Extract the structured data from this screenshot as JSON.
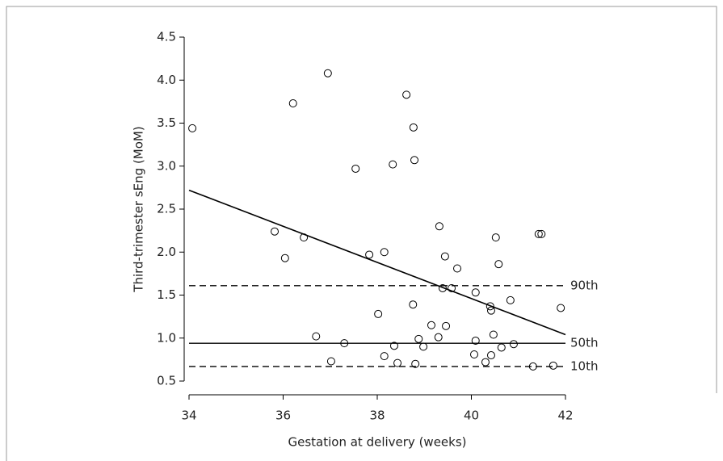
{
  "chart_data": {
    "type": "scatter",
    "x_label": "Gestation at delivery (weeks)",
    "y_label": "Third-trimester sEng (MoM)",
    "x": [
      34.07,
      35.82,
      36.04,
      36.21,
      36.44,
      36.7,
      36.95,
      37.02,
      37.3,
      37.54,
      37.83,
      38.02,
      38.15,
      38.15,
      38.33,
      38.36,
      38.43,
      38.62,
      38.76,
      38.77,
      38.79,
      38.81,
      38.88,
      38.98,
      39.15,
      39.3,
      39.32,
      39.39,
      39.44,
      39.46,
      39.58,
      39.7,
      40.06,
      40.09,
      40.09,
      40.3,
      40.4,
      40.42,
      40.42,
      40.47,
      40.52,
      40.58,
      40.64,
      40.83,
      40.9,
      41.31,
      41.43,
      41.49,
      41.74,
      41.9
    ],
    "values": [
      3.44,
      2.24,
      1.93,
      3.73,
      2.17,
      1.02,
      4.08,
      0.73,
      0.94,
      2.97,
      1.97,
      1.28,
      2.0,
      0.79,
      3.02,
      0.91,
      0.71,
      3.83,
      1.39,
      3.45,
      3.07,
      0.7,
      0.99,
      0.9,
      1.15,
      1.01,
      2.3,
      1.58,
      1.95,
      1.14,
      1.58,
      1.81,
      0.81,
      1.53,
      0.97,
      0.72,
      1.37,
      1.32,
      0.8,
      1.04,
      2.17,
      1.86,
      0.89,
      1.44,
      0.93,
      0.67,
      2.21,
      2.21,
      0.68,
      1.35
    ],
    "trend_line": {
      "x": [
        34,
        42
      ],
      "values": [
        2.72,
        1.04
      ]
    },
    "reference_lines": [
      {
        "label": "90th",
        "value": 1.61,
        "style": "dashed"
      },
      {
        "label": "50th",
        "value": 0.94,
        "style": "solid"
      },
      {
        "label": "10th",
        "value": 0.67,
        "style": "dashed"
      }
    ],
    "xlim": [
      34,
      42
    ],
    "xticks": [
      34,
      36,
      38,
      40,
      42
    ],
    "ylim": [
      0.5,
      4.5
    ],
    "yticks": [
      0.5,
      {
        "value": 1,
        "label": "1.0"
      },
      1.5,
      {
        "value": 2,
        "label": "2.0"
      },
      2.5,
      {
        "value": 3,
        "label": "3.0"
      },
      3.5,
      {
        "value": 4,
        "label": "4.0"
      },
      4.5
    ],
    "color": "#000000"
  }
}
